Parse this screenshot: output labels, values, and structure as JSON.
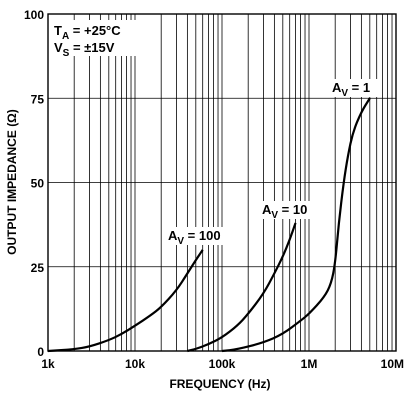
{
  "chart_data": {
    "type": "line",
    "xlabel": "FREQUENCY (Hz)",
    "ylabel": "OUTPUT IMPEDANCE (Ω)",
    "x_scale": "log",
    "xlim": [
      1000,
      10000000
    ],
    "ylim": [
      0,
      100
    ],
    "x_tick_labels": [
      "1k",
      "10k",
      "100k",
      "1M",
      "10M"
    ],
    "y_tick_labels": [
      "0",
      "25",
      "50",
      "75",
      "100"
    ],
    "grid": true,
    "conditions": [
      {
        "main": "T",
        "sub": "A",
        "rest": " = +25°C"
      },
      {
        "main": "V",
        "sub": "S",
        "rest": " = ±15V"
      }
    ],
    "series": [
      {
        "name": "AV = 100",
        "label_main": "A",
        "label_sub": "V",
        "label_rest": " = 100",
        "points": [
          [
            1000,
            0
          ],
          [
            2000,
            0.5
          ],
          [
            3000,
            1.3
          ],
          [
            5000,
            3.2
          ],
          [
            7000,
            5
          ],
          [
            10000,
            7.5
          ],
          [
            15000,
            10.5
          ],
          [
            20000,
            13
          ],
          [
            30000,
            18
          ],
          [
            40000,
            23
          ],
          [
            50000,
            27
          ],
          [
            60000,
            30
          ]
        ]
      },
      {
        "name": "AV = 10",
        "label_main": "A",
        "label_sub": "V",
        "label_rest": " = 10",
        "points": [
          [
            40000,
            0
          ],
          [
            50000,
            0.6
          ],
          [
            70000,
            2
          ],
          [
            100000,
            4
          ],
          [
            150000,
            7.5
          ],
          [
            200000,
            11
          ],
          [
            300000,
            17
          ],
          [
            400000,
            23
          ],
          [
            500000,
            28
          ],
          [
            600000,
            33
          ],
          [
            700000,
            38
          ]
        ]
      },
      {
        "name": "AV = 1",
        "label_main": "A",
        "label_sub": "V",
        "label_rest": " = 1",
        "points": [
          [
            100000,
            0
          ],
          [
            150000,
            0.5
          ],
          [
            300000,
            2.5
          ],
          [
            500000,
            5
          ],
          [
            800000,
            9
          ],
          [
            1000000,
            11
          ],
          [
            1500000,
            16
          ],
          [
            1800000,
            20
          ],
          [
            2000000,
            26
          ],
          [
            2200000,
            38
          ],
          [
            2500000,
            50
          ],
          [
            2800000,
            58
          ],
          [
            3200000,
            65
          ],
          [
            4000000,
            71
          ],
          [
            5000000,
            75
          ]
        ]
      }
    ]
  }
}
